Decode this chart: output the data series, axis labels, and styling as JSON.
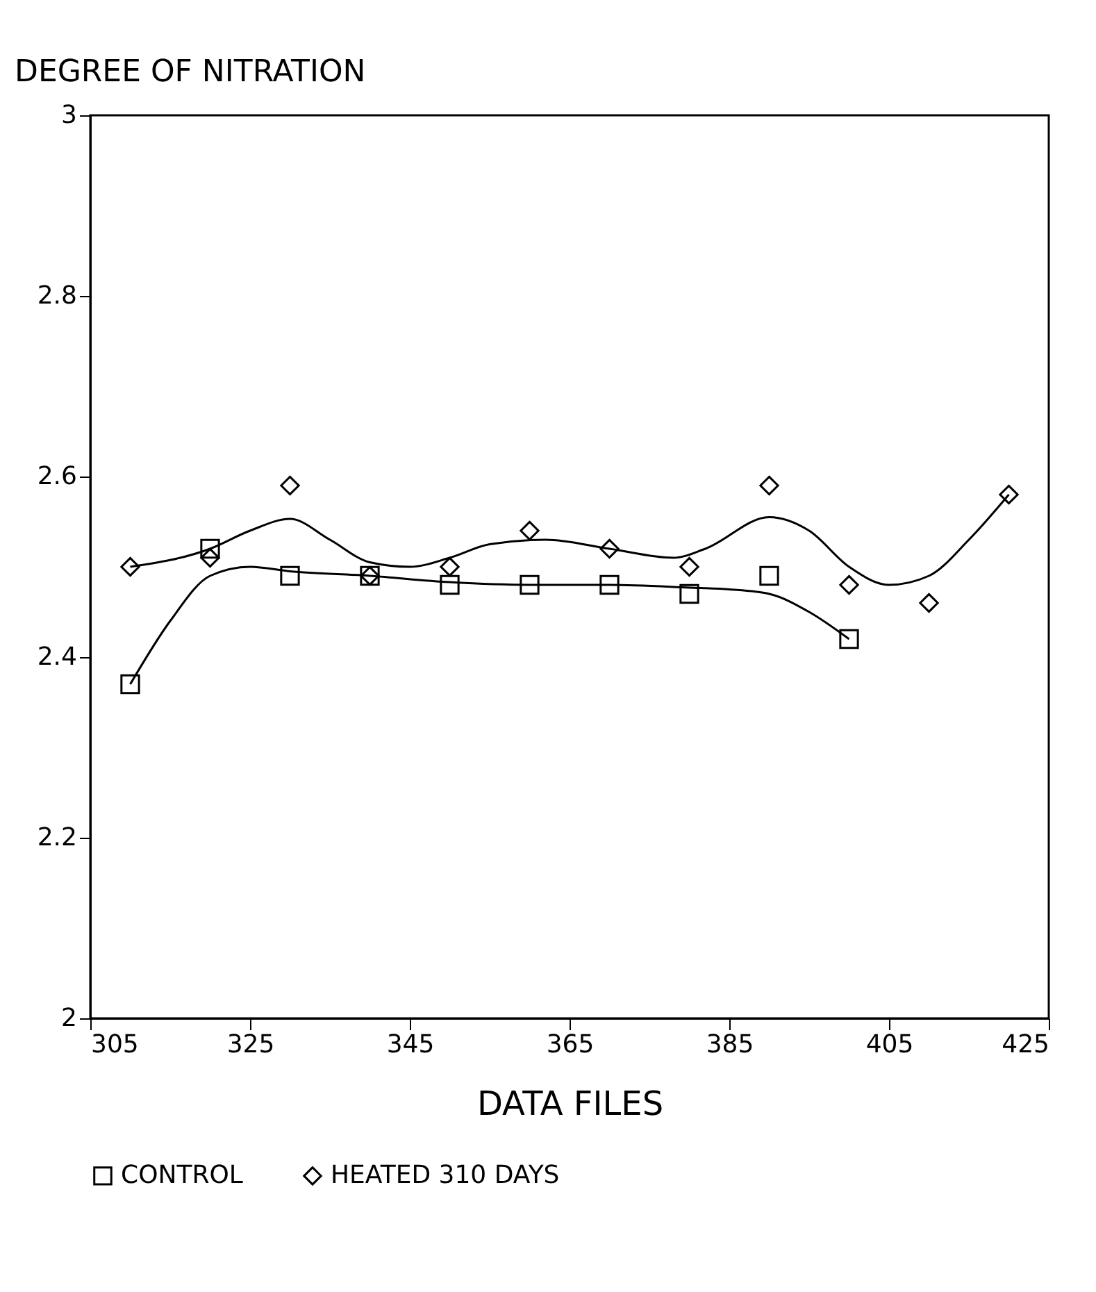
{
  "chart_data": {
    "type": "scatter",
    "ylabel": "DEGREE OF NITRATION",
    "xlabel": "DATA FILES",
    "xlim": [
      305,
      425
    ],
    "xticks": [
      305,
      325,
      345,
      365,
      385,
      405,
      425
    ],
    "ylim": [
      2,
      3
    ],
    "yticks": [
      2,
      2.2,
      2.4,
      2.6,
      2.8,
      3
    ],
    "grid": false,
    "legend": "bottom",
    "series": [
      {
        "name": "CONTROL",
        "color": "#000000",
        "marker": "square",
        "x": [
          310,
          320,
          330,
          340,
          350,
          360,
          370,
          380,
          390,
          400
        ],
        "values": [
          2.37,
          2.52,
          2.49,
          2.49,
          2.48,
          2.48,
          2.48,
          2.47,
          2.49,
          2.42
        ]
      },
      {
        "name": "HEATED 310 DAYS",
        "color": "#000000",
        "marker": "diamond",
        "x": [
          310,
          320,
          330,
          340,
          350,
          360,
          370,
          380,
          390,
          400,
          410,
          420
        ],
        "values": [
          2.5,
          2.51,
          2.59,
          2.49,
          2.5,
          2.54,
          2.52,
          2.5,
          2.59,
          2.48,
          2.46,
          2.58
        ]
      },
      {
        "type": "line",
        "color": "#000000",
        "marker": "none",
        "x": [
          310,
          315,
          320,
          325,
          330,
          340,
          350,
          360,
          370,
          380,
          385,
          390,
          395,
          400
        ],
        "values": [
          2.37,
          2.44,
          2.49,
          2.5,
          2.495,
          2.49,
          2.483,
          2.48,
          2.48,
          2.477,
          2.475,
          2.47,
          2.45,
          2.42
        ]
      },
      {
        "type": "line",
        "color": "#000000",
        "marker": "none",
        "x": [
          310,
          320,
          325,
          330,
          335,
          340,
          345,
          350,
          355,
          362,
          370,
          378,
          382,
          390,
          395,
          400,
          405,
          410,
          415,
          420
        ],
        "values": [
          2.5,
          2.52,
          2.54,
          2.553,
          2.53,
          2.505,
          2.5,
          2.51,
          2.525,
          2.53,
          2.52,
          2.51,
          2.52,
          2.555,
          2.54,
          2.5,
          2.48,
          2.49,
          2.53,
          2.58
        ]
      }
    ]
  }
}
